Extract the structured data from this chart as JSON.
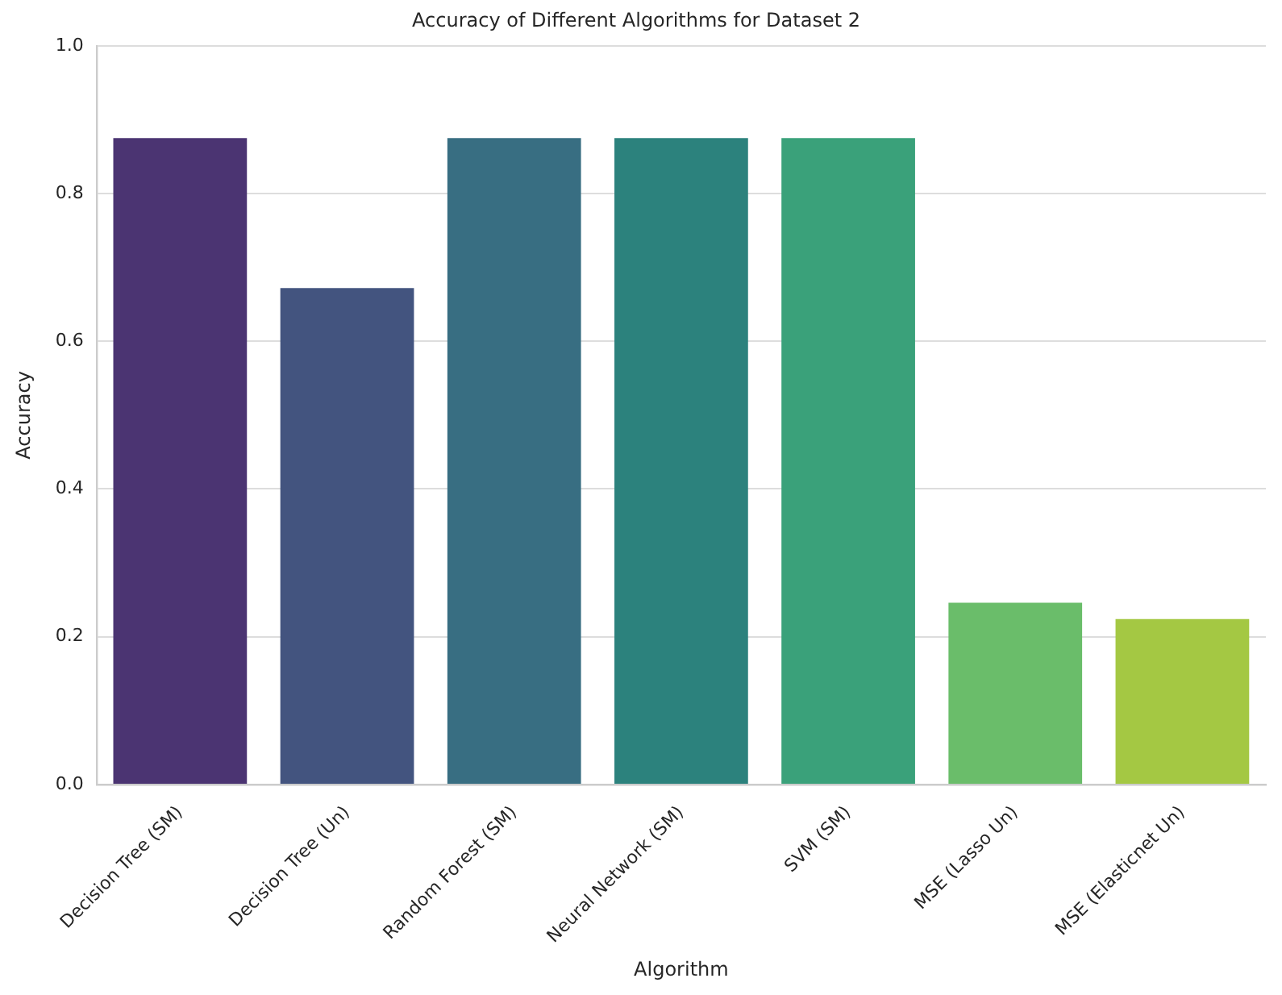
{
  "chart_data": {
    "type": "bar",
    "title": "Accuracy of Different Algorithms for Dataset 2",
    "xlabel": "Algorithm",
    "ylabel": "Accuracy",
    "categories": [
      "Decision Tree (SM)",
      "Decision Tree (Un)",
      "Random Forest (SM)",
      "Neural Network (SM)",
      "SVM (SM)",
      "MSE (Lasso Un)",
      "MSE (Elasticnet Un)"
    ],
    "values": [
      0.875,
      0.672,
      0.875,
      0.875,
      0.875,
      0.246,
      0.224
    ],
    "colors": [
      "#4b3472",
      "#43547f",
      "#386e82",
      "#2c827d",
      "#3aa17a",
      "#6abd6a",
      "#a4c843"
    ],
    "ylim": [
      0,
      1
    ],
    "yticks": [
      {
        "value": 0,
        "label": "0.0"
      },
      {
        "value": 0.2,
        "label": "0.2"
      },
      {
        "value": 0.4,
        "label": "0.4"
      },
      {
        "value": 0.6,
        "label": "0.6"
      },
      {
        "value": 0.8,
        "label": "0.8"
      },
      {
        "value": 1,
        "label": "1.0"
      }
    ],
    "grid": "y",
    "legend": false
  }
}
